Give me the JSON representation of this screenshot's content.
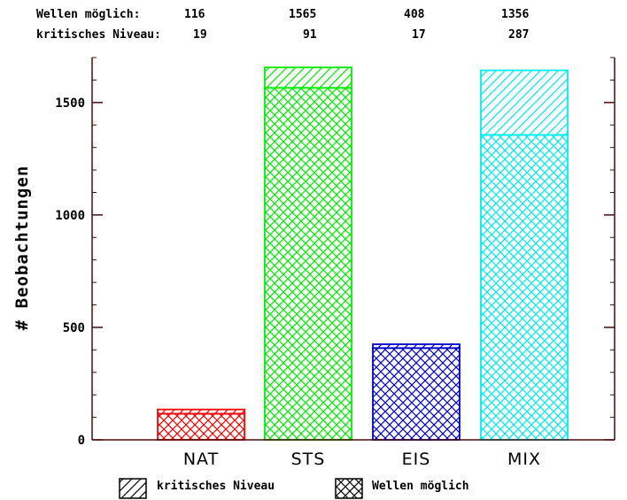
{
  "header": {
    "row1_label": "Wellen möglich:",
    "row2_label": "kritisches Niveau:",
    "wellen_values": [
      "116",
      "1565",
      "408",
      "1356"
    ],
    "kritisch_values": [
      "19",
      "91",
      "17",
      "287"
    ]
  },
  "chart_data": {
    "type": "bar",
    "categories": [
      "NAT",
      "STS",
      "EIS",
      "MIX"
    ],
    "series": [
      {
        "name": "Wellen möglich",
        "values": [
          116,
          1565,
          408,
          1356
        ],
        "pattern": "crosshatch"
      },
      {
        "name": "kritisches Niveau",
        "values": [
          19,
          91,
          17,
          287
        ],
        "pattern": "diagonal"
      }
    ],
    "stacked": true,
    "colors": [
      "#ff0000",
      "#00ee00",
      "#0000cc",
      "#00eeee"
    ],
    "ylabel": "# Beobachtungen",
    "xlabel": "",
    "ylim": [
      0,
      1700
    ],
    "yticks": [
      0,
      500,
      1000,
      1500
    ],
    "ytick_labels": [
      "0",
      "500",
      "1000",
      "1500"
    ],
    "minor_tick_step": 100,
    "legend": {
      "position": "bottom",
      "items": [
        "kritisches Niveau",
        "Wellen möglich"
      ]
    }
  }
}
